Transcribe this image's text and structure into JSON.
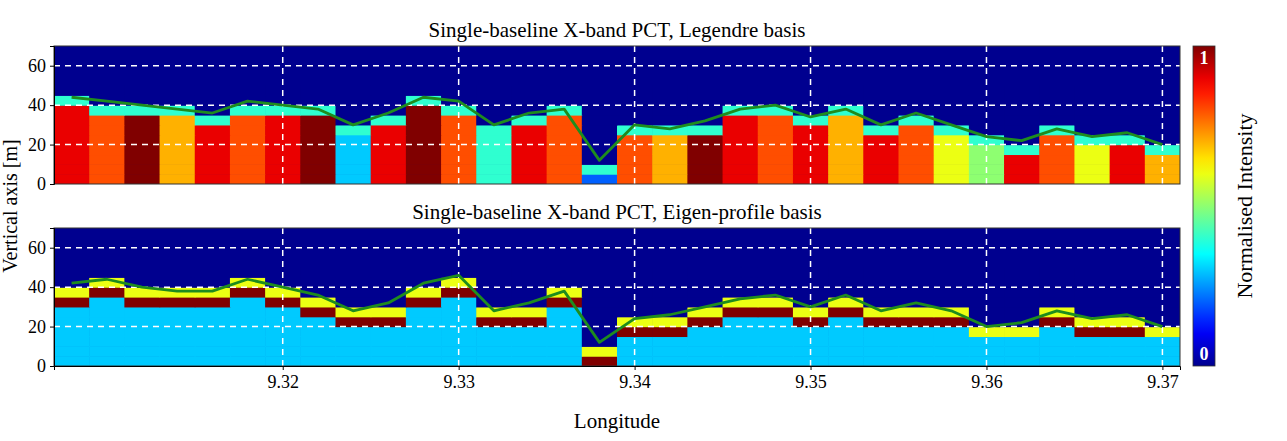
{
  "chart_data": [
    {
      "type": "heatmap",
      "title": "Single-baseline X-band PCT, Legendre basis",
      "x": [
        9.308,
        9.31,
        9.312,
        9.314,
        9.316,
        9.318,
        9.32,
        9.322,
        9.324,
        9.326,
        9.328,
        9.33,
        9.332,
        9.334,
        9.336,
        9.338,
        9.34,
        9.342,
        9.344,
        9.346,
        9.348,
        9.35,
        9.352,
        9.354,
        9.356,
        9.358,
        9.36,
        9.362,
        9.364,
        9.366,
        9.368,
        9.37
      ],
      "y": [
        2.5,
        7.5,
        12.5,
        17.5,
        22.5,
        27.5,
        32.5,
        37.5,
        42.5,
        47.5
      ],
      "values": [
        [
          0.9,
          0.8,
          1,
          0.7,
          0.9,
          0.8,
          0.9,
          1,
          0.3,
          0.9,
          1,
          0.8,
          0.4,
          0.9,
          0.8,
          0.2,
          0.8,
          0.7,
          1,
          0.9,
          0.8,
          0.9,
          0.7,
          0.9,
          0.8,
          0.6,
          0.5,
          0.9,
          0.8,
          0.6,
          0.9,
          0.7
        ],
        [
          0.9,
          0.8,
          1,
          0.7,
          0.9,
          0.8,
          0.9,
          1,
          0.3,
          0.9,
          1,
          0.8,
          0.4,
          0.9,
          0.8,
          0.4,
          0.8,
          0.7,
          1,
          0.9,
          0.8,
          0.9,
          0.7,
          0.9,
          0.8,
          0.6,
          0.5,
          0.9,
          0.8,
          0.6,
          0.9,
          0.7
        ],
        [
          0.9,
          0.8,
          1,
          0.7,
          0.9,
          0.8,
          0.9,
          1,
          0.3,
          0.9,
          1,
          0.8,
          0.4,
          0.9,
          0.8,
          0,
          0.8,
          0.7,
          1,
          0.9,
          0.8,
          0.9,
          0.7,
          0.9,
          0.8,
          0.6,
          0.5,
          0.9,
          0.8,
          0.6,
          0.9,
          0.7
        ],
        [
          0.9,
          0.8,
          1,
          0.7,
          0.9,
          0.8,
          0.9,
          1,
          0.3,
          0.9,
          1,
          0.8,
          0.4,
          0.9,
          0.8,
          0,
          0.8,
          0.7,
          1,
          0.9,
          0.8,
          0.9,
          0.7,
          0.9,
          0.8,
          0.6,
          0.5,
          0.4,
          0.8,
          0.6,
          0.9,
          0.4
        ],
        [
          0.9,
          0.8,
          1,
          0.7,
          0.9,
          0.8,
          0.9,
          1,
          0.3,
          0.9,
          1,
          0.8,
          0.4,
          0.9,
          0.8,
          0,
          0.8,
          0.7,
          1,
          0.9,
          0.8,
          0.9,
          0.7,
          0.9,
          0.8,
          0.6,
          0.4,
          0,
          0.8,
          0.4,
          0.4,
          0
        ],
        [
          0.9,
          0.8,
          1,
          0.7,
          0.9,
          0.8,
          0.9,
          1,
          0.4,
          0.9,
          1,
          0.8,
          0.4,
          0.9,
          0.8,
          0,
          0.4,
          0.4,
          0.4,
          0.9,
          0.8,
          0.9,
          0.7,
          0.4,
          0.8,
          0.4,
          0,
          0,
          0.4,
          0,
          0,
          0
        ],
        [
          0.9,
          0.8,
          1,
          0.7,
          0.4,
          0.8,
          0.9,
          1,
          0,
          0.4,
          1,
          0.8,
          0,
          0.4,
          0.8,
          0,
          0,
          0,
          0,
          0.9,
          0.8,
          0.4,
          0.7,
          0,
          0.4,
          0,
          0,
          0,
          0,
          0,
          0,
          0
        ],
        [
          0.9,
          0.4,
          0.4,
          0.4,
          0,
          0.4,
          0.4,
          0.4,
          0,
          0,
          1,
          0.4,
          0,
          0,
          0.4,
          0,
          0,
          0,
          0,
          0.4,
          0.4,
          0,
          0.4,
          0,
          0,
          0,
          0,
          0,
          0,
          0,
          0,
          0
        ],
        [
          0.4,
          0,
          0,
          0,
          0,
          0,
          0,
          0,
          0,
          0,
          0.4,
          0,
          0,
          0,
          0,
          0,
          0,
          0,
          0,
          0,
          0,
          0,
          0,
          0,
          0,
          0,
          0,
          0,
          0,
          0,
          0,
          0
        ],
        [
          0,
          0,
          0,
          0,
          0,
          0,
          0,
          0,
          0,
          0,
          0,
          0,
          0,
          0,
          0,
          0,
          0,
          0,
          0,
          0,
          0,
          0,
          0,
          0,
          0,
          0,
          0,
          0,
          0,
          0,
          0,
          0
        ]
      ],
      "line": {
        "color": "#1e8c1e",
        "values": [
          44,
          42,
          40,
          38,
          36,
          42,
          40,
          38,
          30,
          36,
          44,
          42,
          30,
          36,
          38,
          12,
          30,
          28,
          32,
          38,
          40,
          34,
          38,
          30,
          36,
          30,
          24,
          22,
          28,
          24,
          26,
          20
        ]
      },
      "xlim": [
        9.307,
        9.371
      ],
      "ylim": [
        0,
        70
      ],
      "xticks": [
        9.32,
        9.33,
        9.34,
        9.35,
        9.36,
        9.37
      ],
      "yticks": [
        0,
        20,
        40,
        60
      ],
      "grid": true,
      "tick_labels": "y"
    },
    {
      "type": "heatmap",
      "title": "Single-baseline X-band PCT, Eigen-profile basis",
      "x_label": "Longitude",
      "x": [
        9.308,
        9.31,
        9.312,
        9.314,
        9.316,
        9.318,
        9.32,
        9.322,
        9.324,
        9.326,
        9.328,
        9.33,
        9.332,
        9.334,
        9.336,
        9.338,
        9.34,
        9.342,
        9.344,
        9.346,
        9.348,
        9.35,
        9.352,
        9.354,
        9.356,
        9.358,
        9.36,
        9.362,
        9.364,
        9.366,
        9.368,
        9.37
      ],
      "y": [
        2.5,
        7.5,
        12.5,
        17.5,
        22.5,
        27.5,
        32.5,
        37.5,
        42.5,
        47.5
      ],
      "values": [
        [
          0.3,
          0.3,
          0.3,
          0.3,
          0.3,
          0.3,
          0.3,
          0.3,
          0.3,
          0.3,
          0.3,
          0.3,
          0.3,
          0.3,
          0.3,
          1,
          0.3,
          0.3,
          0.3,
          0.3,
          0.3,
          0.3,
          0.3,
          0.3,
          0.3,
          0.3,
          0.3,
          0.3,
          0.3,
          0.3,
          0.3,
          0.3
        ],
        [
          0.3,
          0.3,
          0.3,
          0.3,
          0.3,
          0.3,
          0.3,
          0.3,
          0.3,
          0.3,
          0.3,
          0.3,
          0.3,
          0.3,
          0.3,
          0.6,
          0.3,
          0.3,
          0.3,
          0.3,
          0.3,
          0.3,
          0.3,
          0.3,
          0.3,
          0.3,
          0.3,
          0.3,
          0.3,
          0.3,
          0.3,
          0.3
        ],
        [
          0.3,
          0.3,
          0.3,
          0.3,
          0.3,
          0.3,
          0.3,
          0.3,
          0.3,
          0.3,
          0.3,
          0.3,
          0.3,
          0.3,
          0.3,
          0,
          0.3,
          0.3,
          0.3,
          0.3,
          0.3,
          0.3,
          0.3,
          0.3,
          0.3,
          0.3,
          0.3,
          0.3,
          0.3,
          0.3,
          0.3,
          0.3
        ],
        [
          0.3,
          0.3,
          0.3,
          0.3,
          0.3,
          0.3,
          0.3,
          0.3,
          0.3,
          0.3,
          0.3,
          0.3,
          0.3,
          0.3,
          0.3,
          0,
          1,
          1,
          0.3,
          0.3,
          0.3,
          0.3,
          0.3,
          0.3,
          0.3,
          0.3,
          0.6,
          0.6,
          0.3,
          1,
          1,
          0.6
        ],
        [
          0.3,
          0.3,
          0.3,
          0.3,
          0.3,
          0.3,
          0.3,
          0.3,
          1,
          1,
          0.3,
          0.3,
          1,
          1,
          0.3,
          0,
          0.6,
          0.6,
          1,
          0.3,
          0.3,
          1,
          0.3,
          1,
          1,
          1,
          0,
          0,
          1,
          0.6,
          0.6,
          0
        ],
        [
          0.3,
          0.3,
          0.3,
          0.3,
          0.3,
          0.3,
          0.3,
          1,
          0.6,
          0.6,
          0.3,
          0.3,
          0.6,
          0.6,
          0.3,
          0,
          0,
          0,
          0.6,
          1,
          1,
          0.6,
          1,
          0.6,
          0.6,
          0.6,
          0,
          0,
          0.6,
          0,
          0,
          0
        ],
        [
          1,
          0.3,
          1,
          1,
          1,
          0.3,
          1,
          0.6,
          0,
          0,
          1,
          0.3,
          0,
          0,
          1,
          0,
          0,
          0,
          0,
          0.6,
          0.6,
          0,
          0.6,
          0,
          0,
          0,
          0,
          0,
          0,
          0,
          0,
          0
        ],
        [
          0.6,
          1,
          0.6,
          0.6,
          0.6,
          1,
          0.6,
          0,
          0,
          0,
          0.6,
          1,
          0,
          0,
          0.6,
          0,
          0,
          0,
          0,
          0,
          0,
          0,
          0,
          0,
          0,
          0,
          0,
          0,
          0,
          0,
          0,
          0
        ],
        [
          0,
          0.6,
          0,
          0,
          0,
          0.6,
          0,
          0,
          0,
          0,
          0,
          0.6,
          0,
          0,
          0,
          0,
          0,
          0,
          0,
          0,
          0,
          0,
          0,
          0,
          0,
          0,
          0,
          0,
          0,
          0,
          0,
          0
        ],
        [
          0,
          0,
          0,
          0,
          0,
          0,
          0,
          0,
          0,
          0,
          0,
          0,
          0,
          0,
          0,
          0,
          0,
          0,
          0,
          0,
          0,
          0,
          0,
          0,
          0,
          0,
          0,
          0,
          0,
          0,
          0,
          0
        ]
      ],
      "line": {
        "color": "#1e8c1e",
        "values": [
          42,
          44,
          40,
          38,
          38,
          44,
          40,
          36,
          28,
          32,
          42,
          46,
          28,
          32,
          38,
          12,
          24,
          26,
          30,
          34,
          36,
          30,
          36,
          28,
          32,
          28,
          20,
          22,
          28,
          24,
          26,
          20
        ]
      },
      "xlim": [
        9.307,
        9.371
      ],
      "ylim": [
        0,
        70
      ],
      "xticks": [
        9.32,
        9.33,
        9.34,
        9.35,
        9.36,
        9.37
      ],
      "yticks": [
        0,
        20,
        40,
        60
      ],
      "grid": true
    }
  ],
  "y_label": "Vertical axis [m]",
  "colorbar": {
    "range": [
      0,
      1
    ],
    "ticks": [
      0,
      1
    ],
    "label": "Normalised Intensity"
  }
}
